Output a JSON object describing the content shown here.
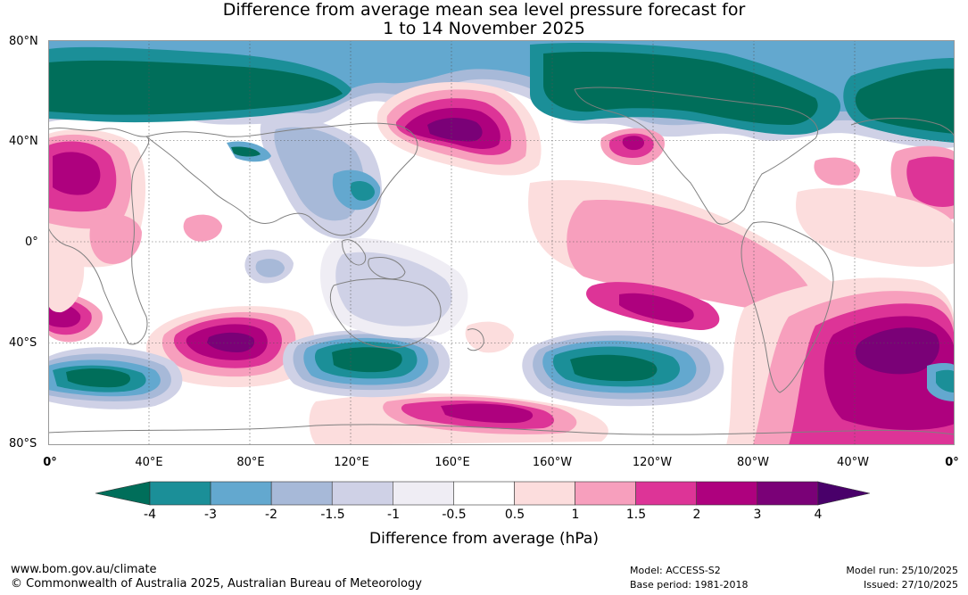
{
  "title_line1": "Difference from average mean sea level pressure forecast for",
  "title_line2": "1 to 14 November 2025",
  "lat_labels": [
    "80°N",
    "40°N",
    "0°",
    "40°S",
    "80°S"
  ],
  "lon_labels": [
    "0°",
    "40°E",
    "80°E",
    "120°E",
    "160°E",
    "160°W",
    "120°W",
    "80°W",
    "40°W",
    "0°"
  ],
  "colorbar": {
    "ticks": [
      "-4",
      "-3",
      "-2",
      "-1.5",
      "-1",
      "-0.5",
      "0.5",
      "1",
      "1.5",
      "2",
      "3",
      "4"
    ],
    "colors": [
      "#006e5a",
      "#1b8f98",
      "#63a8cf",
      "#a7b9d8",
      "#cfd1e6",
      "#efedf4",
      "#ffffff",
      "#fcdddd",
      "#f79fbd",
      "#dd3497",
      "#ae017e",
      "#7a0177",
      "#49006a"
    ],
    "label": "Difference from average (hPa)"
  },
  "footer": {
    "website": "www.bom.gov.au/climate",
    "copyright": "© Commonwealth of Australia 2025, Australian Bureau of Meteorology",
    "model": "Model: ACCESS-S2",
    "base_period": "Base period: 1981-2018",
    "model_run": "Model run: 25/10/2025",
    "issued": "Issued: 27/10/2025"
  }
}
